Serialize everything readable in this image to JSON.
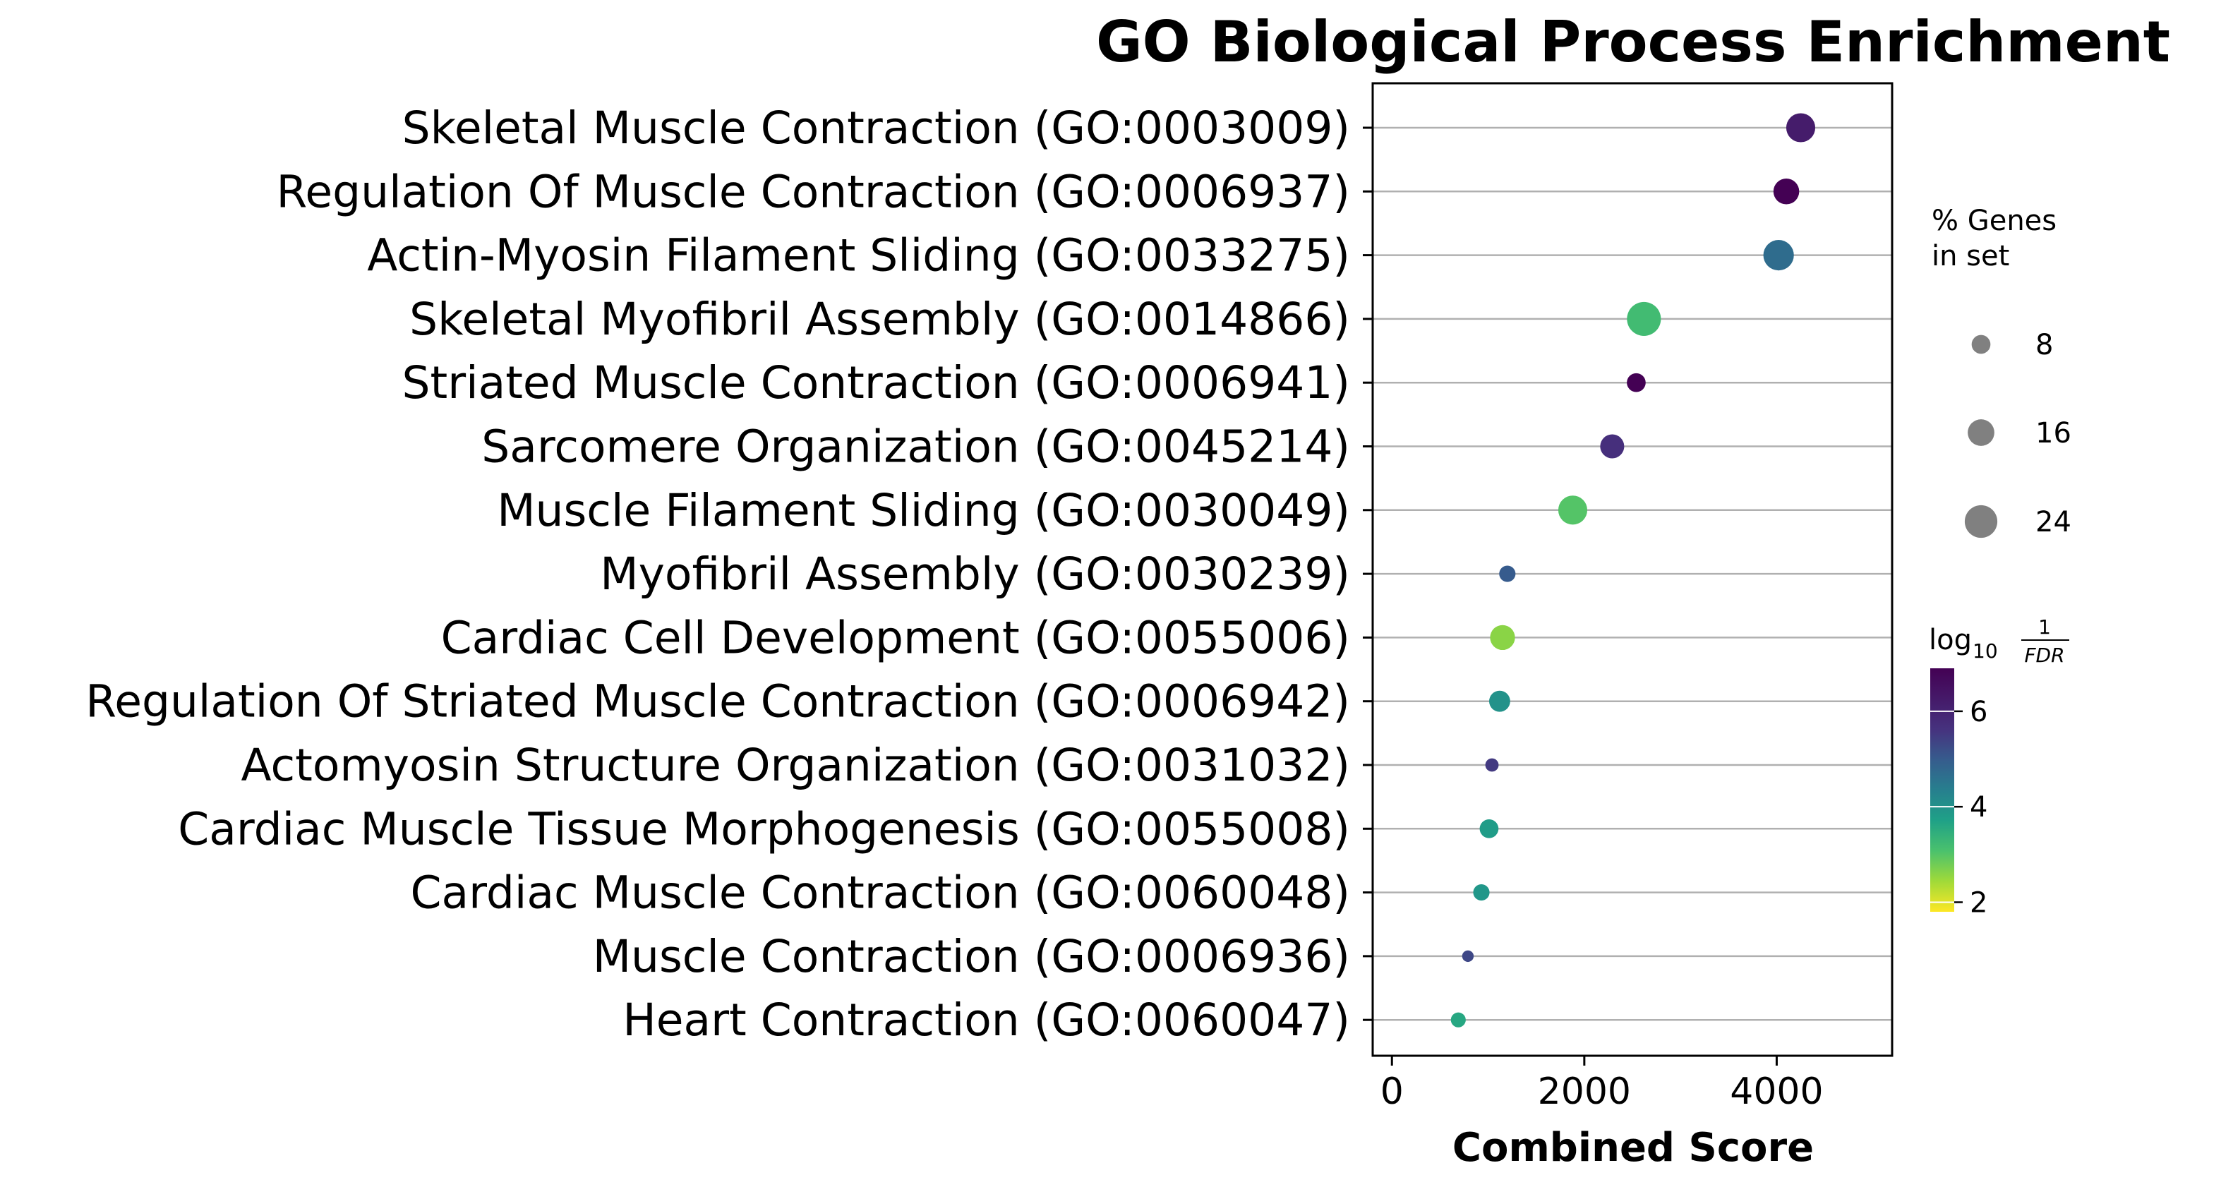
{
  "chart_data": {
    "type": "scatter",
    "title": "GO Biological Process Enrichment",
    "xlabel": "Combined Score",
    "ylabel": "",
    "xlim": [
      -200,
      5200
    ],
    "xticks": [
      0,
      2000,
      4000
    ],
    "xtick_labels": [
      "0",
      "2000",
      "4000"
    ],
    "grid": "horizontal",
    "categories": [
      "Skeletal Muscle Contraction (GO:0003009)",
      "Regulation Of Muscle Contraction (GO:0006937)",
      "Actin-Myosin Filament Sliding (GO:0033275)",
      "Skeletal Myofibril Assembly (GO:0014866)",
      "Striated Muscle Contraction (GO:0006941)",
      "Sarcomere Organization (GO:0045214)",
      "Muscle Filament Sliding (GO:0030049)",
      "Myofibril Assembly (GO:0030239)",
      "Cardiac Cell Development (GO:0055006)",
      "Regulation Of Striated Muscle Contraction (GO:0006942)",
      "Actomyosin Structure Organization (GO:0031032)",
      "Cardiac Muscle Tissue Morphogenesis (GO:0055008)",
      "Cardiac Muscle Contraction (GO:0060048)",
      "Muscle Contraction (GO:0006936)",
      "Heart Contraction (GO:0060047)"
    ],
    "combined_score": [
      4250,
      4100,
      4020,
      2620,
      2540,
      2290,
      1880,
      1200,
      1150,
      1120,
      1040,
      1010,
      930,
      790,
      690
    ],
    "pct_genes_in_set": [
      19,
      15,
      21,
      26,
      8,
      13,
      19,
      6,
      14,
      10,
      4,
      8,
      6,
      3,
      5
    ],
    "neg_log10_fdr": [
      6.2,
      6.9,
      4.7,
      3.2,
      6.9,
      5.7,
      3.0,
      5.0,
      2.6,
      4.0,
      5.5,
      3.8,
      3.9,
      5.3,
      3.6
    ],
    "size_legend": {
      "title_line1": "% Genes",
      "title_line2": "in set",
      "values": [
        8,
        16,
        24
      ],
      "labels": [
        "8",
        "16",
        "24"
      ]
    },
    "colorbar": {
      "label_main": "log",
      "label_sub": "10",
      "frac_num": "1",
      "frac_den": "FDR",
      "range": [
        1.8,
        6.9
      ],
      "ticks": [
        2,
        4,
        6
      ],
      "tick_labels": [
        "2",
        "4",
        "6"
      ],
      "colormap": "viridis_r"
    },
    "legend_position": "right",
    "colors": {
      "grid": "#b0b0b0",
      "axis": "#000000",
      "legend_marker": "#808080"
    }
  }
}
